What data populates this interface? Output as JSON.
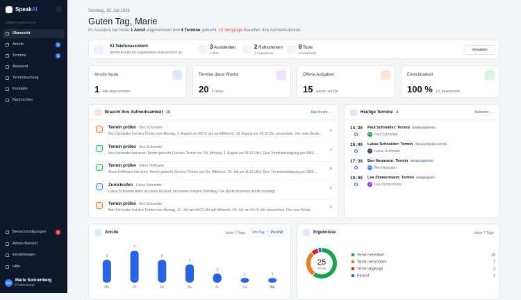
{
  "sidebar": {
    "brand": "Speak",
    "brand_accent": "AI",
    "section": "ARBEITSBEREICH",
    "nav": [
      {
        "label": "Übersicht"
      },
      {
        "label": "Anrufe",
        "badge": 4
      },
      {
        "label": "Termine",
        "badge": 1
      },
      {
        "label": "Assistent"
      },
      {
        "label": "Terminbuchung"
      },
      {
        "label": "Kontakte"
      },
      {
        "label": "Nachrichten"
      }
    ],
    "bottom_nav": [
      {
        "label": "Benachrichtigungen",
        "badge": 4
      },
      {
        "label": "Admin-Bereich"
      },
      {
        "label": "Einstellungen"
      },
      {
        "label": "Hilfe"
      }
    ],
    "user": {
      "initials": "MS",
      "name": "Marie Sonnenberg",
      "plan": "Professional"
    }
  },
  "header": {
    "date": "Sonntag, 19. Juli 2026",
    "greeting": "Guten Tag, Marie",
    "summary": [
      {
        "text": "Ihr Assistent hat heute "
      },
      {
        "text": "1 Anruf",
        "style": "bold"
      },
      {
        "text": " angenommen und "
      },
      {
        "text": "4 Termine",
        "style": "bold"
      },
      {
        "text": " gebucht. "
      },
      {
        "text": "15 Vorgänge",
        "style": "alert"
      },
      {
        "text": " brauchen Ihre Aufmerksamkeit."
      }
    ]
  },
  "assistant_bar": {
    "title": "KI-Telefonassistent",
    "subtitle": "Nimmt Anrufe für zugelassene Rufnummern an",
    "stats": [
      {
        "count": 3,
        "label": "Assistenten",
        "sub": "3 aktiv"
      },
      {
        "count": 2,
        "label": "Rufnummern",
        "sub": "2 zugewiesen"
      },
      {
        "count": 8,
        "label": "Tools",
        "sub": "einsatzbereit"
      }
    ],
    "button": "Verwalten"
  },
  "stats": [
    {
      "label": "Anrufe heute",
      "value": 1,
      "sub": "alle angenommen",
      "color": "#3b82f6"
    },
    {
      "label": "Termine diese Woche",
      "value": 20,
      "sub": "4 heute",
      "color": "#a855f7"
    },
    {
      "label": "Offene Aufgaben",
      "value": 15,
      "sub": "warten auf Sie",
      "color": "#f97316"
    },
    {
      "label": "Erreichbarkeit",
      "value": "100 %",
      "sub": "1/1 beantwortet",
      "color": "#22c55e"
    }
  ],
  "attention": {
    "title": "Braucht Ihre Aufmerksamkeit",
    "count": 15,
    "link": "Alle Anrufe →",
    "items": [
      {
        "title": "Termin prüfen",
        "meta": "· Ben Schneider",
        "text": "Ben Schneider hat den Termin vom Montag, 3. August um 08:15 Uhr auf Mittwoch, 19. August um 14:15 Uhr verschoben. Die neue Besta...",
        "color": "#f97316"
      },
      {
        "title": "Termin prüfen",
        "meta": "· Ben Schneider",
        "text": "Ben Schneider hat einen Termin gebucht (Service-Termin vor Ort, Montag, 3. August um 08:15 Uhr). Eine Terminbestätigung per SMS...",
        "color": "#22c55e"
      },
      {
        "title": "Termin prüfen",
        "meta": "· Marie Hoffmann",
        "text": "Marie Hoffmann hat einen Termin gebucht (Service-Termin vor Ort, Mittwoch, 29. Juli um 11:15 Uhr). Eine Terminbestätigung per SMS...",
        "color": "#22c55e"
      },
      {
        "title": "Zurückrufen",
        "meta": "· Lukas Schneider",
        "text": "Lukas Schneider bittet um einen Rückruf, am besten morgen Vormittag. Die Rückrufnummer wurde bestätigt.",
        "color": "#3b82f6"
      },
      {
        "title": "Termin prüfen",
        "meta": "· Ben Schneider",
        "text": "Ben Schneider hat den Termin vom Montag, 27. Juli um 08:00 Uhr auf Mittwoch, 29. Juli um 09:15 Uhr verschoben. Die neue Besta...",
        "color": "#f97316"
      }
    ]
  },
  "appointments": {
    "title": "Heutige Termine",
    "count": 4,
    "link": "Kalender →",
    "items": [
      {
        "time": "14:30",
        "title": "Paul Schneider: Termin",
        "tag": "Beratungstermin",
        "initials": "PS",
        "person": "Paul Schneider",
        "color": "#16a34a"
      },
      {
        "time": "16:00",
        "title": "Lukas Schneider: Termin",
        "tag": "Service-Termin vor Ort",
        "initials": "LS",
        "person": "Lukas Schneider",
        "color": "#334155"
      },
      {
        "time": "17:30",
        "title": "Ben Neumann: Termin",
        "tag": "Beratungstermin",
        "initials": "BN",
        "person": "Ben Neumann",
        "color": "#3b82f6"
      },
      {
        "time": "19:00",
        "title": "Lea Zimmermann: Termin",
        "tag": "Erstgespräch",
        "initials": "LZ",
        "person": "Lea Zimmermann",
        "color": "#9333ea"
      }
    ]
  },
  "calls_chart": {
    "type": "bar",
    "title": "Anrufe",
    "range": "letzte 7 Tage",
    "toggle": [
      "Pro Tag",
      "Pro KW"
    ],
    "categories": [
      "Mo",
      "Di",
      "Mi",
      "Do",
      "Fr",
      "Sa",
      "So"
    ],
    "values": [
      5,
      7,
      5,
      4,
      2,
      1,
      1
    ],
    "color": "#2563eb",
    "today_index": 6
  },
  "results_chart": {
    "type": "donut",
    "title": "Ergebnisse",
    "range": "letzte 7 Tage",
    "total": 25,
    "total_label": "Anrufe",
    "categories": [
      "Termin vereinbart",
      "Termin verschoben",
      "Termin abgesagt",
      "Rückruf"
    ],
    "values": [
      15,
      7,
      2,
      1
    ],
    "colors": [
      "#16a34a",
      "#ea7a1c",
      "#dc2626",
      "#2563eb"
    ]
  }
}
